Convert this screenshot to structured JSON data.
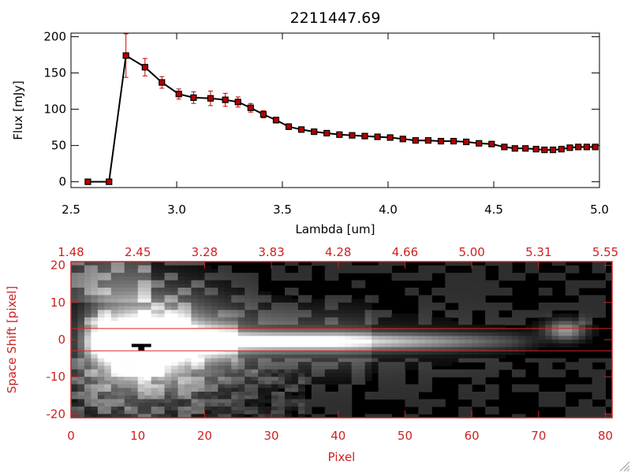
{
  "chart_data": [
    {
      "type": "line",
      "title": "2211447.69",
      "xlabel": "Lambda [um]",
      "ylabel": "Flux [mJy]",
      "xlim": [
        2.5,
        5.0
      ],
      "ylim": [
        -8,
        205
      ],
      "xticks": [
        "2.5",
        "3.0",
        "3.5",
        "4.0",
        "4.5",
        "5.0"
      ],
      "xtick_values": [
        2.5,
        3.0,
        3.5,
        4.0,
        4.5,
        5.0
      ],
      "yticks": [
        "0",
        "50",
        "100",
        "150",
        "200"
      ],
      "ytick_values": [
        0,
        50,
        100,
        150,
        200
      ],
      "grid": false,
      "colors": {
        "line": "#000000",
        "marker": "#b30000",
        "errorbar": "#cc0000"
      },
      "series": [
        {
          "x": [
            2.58,
            2.68,
            2.76,
            2.85,
            2.93,
            3.01,
            3.08,
            3.16,
            3.23,
            3.29,
            3.35,
            3.41,
            3.47,
            3.53,
            3.59,
            3.65,
            3.71,
            3.77,
            3.83,
            3.89,
            3.95,
            4.01,
            4.07,
            4.13,
            4.19,
            4.25,
            4.31,
            4.37,
            4.43,
            4.49,
            4.55,
            4.6,
            4.65,
            4.7,
            4.74,
            4.78,
            4.82,
            4.86,
            4.9,
            4.94,
            4.98
          ],
          "y": [
            0,
            0,
            174,
            158,
            137,
            121,
            116,
            115,
            113,
            110,
            102,
            93,
            85,
            76,
            72,
            69,
            67,
            65,
            64,
            63,
            62,
            61,
            59,
            57,
            57,
            56,
            56,
            55,
            53,
            52,
            48,
            46,
            46,
            45,
            44,
            44,
            45,
            47,
            48,
            48,
            48
          ],
          "yerr": [
            0,
            0,
            30,
            12,
            8,
            7,
            8,
            10,
            9,
            7,
            6,
            5,
            4,
            4,
            3,
            3,
            3,
            3,
            3,
            3,
            3,
            3,
            3,
            3,
            3,
            3,
            3,
            3,
            3,
            3,
            3,
            3,
            3,
            3,
            3,
            3,
            3,
            3,
            3,
            3,
            3
          ]
        }
      ]
    },
    {
      "type": "heatmap",
      "xlabel": "Pixel",
      "ylabel": "Space Shift [pixel]",
      "xlim": [
        0,
        81
      ],
      "ylim": [
        -21,
        21
      ],
      "xticks": [
        "0",
        "10",
        "20",
        "30",
        "40",
        "50",
        "60",
        "70",
        "80"
      ],
      "xtick_values": [
        0,
        10,
        20,
        30,
        40,
        50,
        60,
        70,
        80
      ],
      "yticks": [
        "-20",
        "-10",
        "0",
        "10",
        "20"
      ],
      "ytick_values": [
        -20,
        -10,
        0,
        10,
        20
      ],
      "top_axis_ticks": [
        "1.48",
        "2.45",
        "3.28",
        "3.83",
        "4.28",
        "4.66",
        "5.00",
        "5.31",
        "5.55"
      ],
      "top_axis_tick_positions": [
        0,
        10,
        20,
        30,
        40,
        50,
        60,
        70,
        80
      ],
      "aperture_lines": [
        3,
        -3
      ],
      "colors": {
        "axis": "#cc2222",
        "aperture": "#dd2222",
        "colormap": "grayscale"
      },
      "features": [
        {
          "kind": "trace",
          "x_from": 5,
          "x_to": 66,
          "y_center": -0.5
        },
        {
          "kind": "blob",
          "x_center": 11,
          "y_center": -1,
          "peak_intensity": 1.0
        },
        {
          "kind": "saturated",
          "x_center": 10.5,
          "y_center": -1.7,
          "value": 0
        },
        {
          "kind": "blob",
          "x_center": 74,
          "y_center": 2.5,
          "peak_intensity": 0.6
        }
      ]
    }
  ]
}
